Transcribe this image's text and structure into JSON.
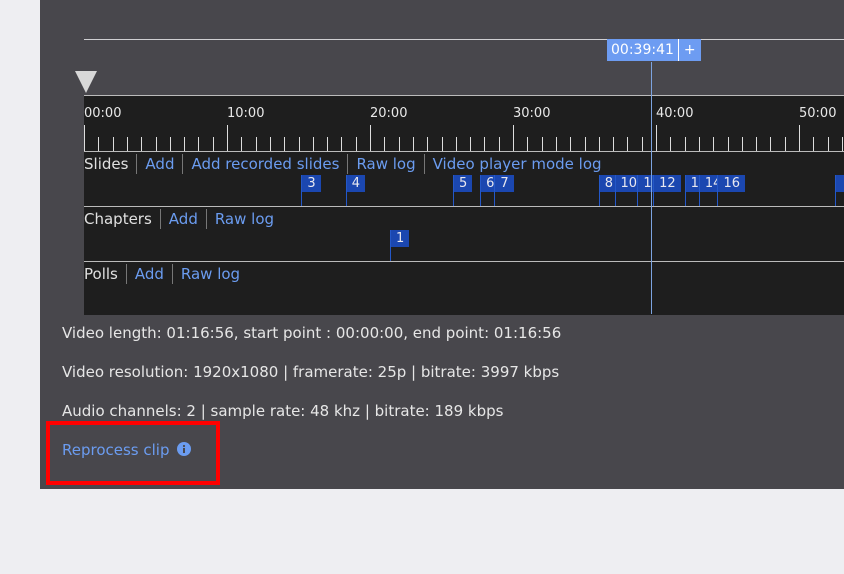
{
  "playhead": {
    "time": "00:39:41",
    "add_label": "+",
    "time_min": 39.68
  },
  "ruler": {
    "labels": [
      "00:00",
      "10:00",
      "20:00",
      "30:00",
      "40:00",
      "50:00"
    ]
  },
  "rows": {
    "slides": {
      "title": "Slides",
      "actions": [
        "Add",
        "Add recorded slides",
        "Raw log",
        "Video player mode log"
      ],
      "markers": [
        {
          "label": "3",
          "time_min": 15.2
        },
        {
          "label": "4",
          "time_min": 18.3
        },
        {
          "label": "5",
          "time_min": 25.8
        },
        {
          "label": "6",
          "time_min": 27.7
        },
        {
          "label": "7",
          "time_min": 28.7
        },
        {
          "label": "8",
          "time_min": 36.0
        },
        {
          "label": "10",
          "time_min": 37.1
        },
        {
          "label": "1",
          "time_min": 38.7
        },
        {
          "label": "12",
          "time_min": 39.8
        },
        {
          "label": "1:",
          "time_min": 42.0
        },
        {
          "label": "14",
          "time_min": 43.0
        },
        {
          "label": "16",
          "time_min": 44.3
        },
        {
          "label": "",
          "time_min": 52.5
        }
      ]
    },
    "chapters": {
      "title": "Chapters",
      "actions": [
        "Add",
        "Raw log"
      ],
      "markers": [
        {
          "label": "1",
          "time_min": 21.4
        }
      ]
    },
    "polls": {
      "title": "Polls",
      "actions": [
        "Add",
        "Raw log"
      ],
      "markers": []
    }
  },
  "info": {
    "length": "Video length: 01:16:56, start point : 00:00:00, end point: 01:16:56",
    "resolution": "Video resolution: 1920x1080 | framerate: 25p | bitrate: 3997 kbps",
    "audio": "Audio channels: 2 | sample rate: 48 khz | bitrate: 189 kbps"
  },
  "reprocess": {
    "label": "Reprocess clip",
    "icon": "info-circle-icon"
  },
  "colors": {
    "accent": "#6b9cf0",
    "marker": "#1b47b0",
    "highlight": "#ff0000"
  }
}
